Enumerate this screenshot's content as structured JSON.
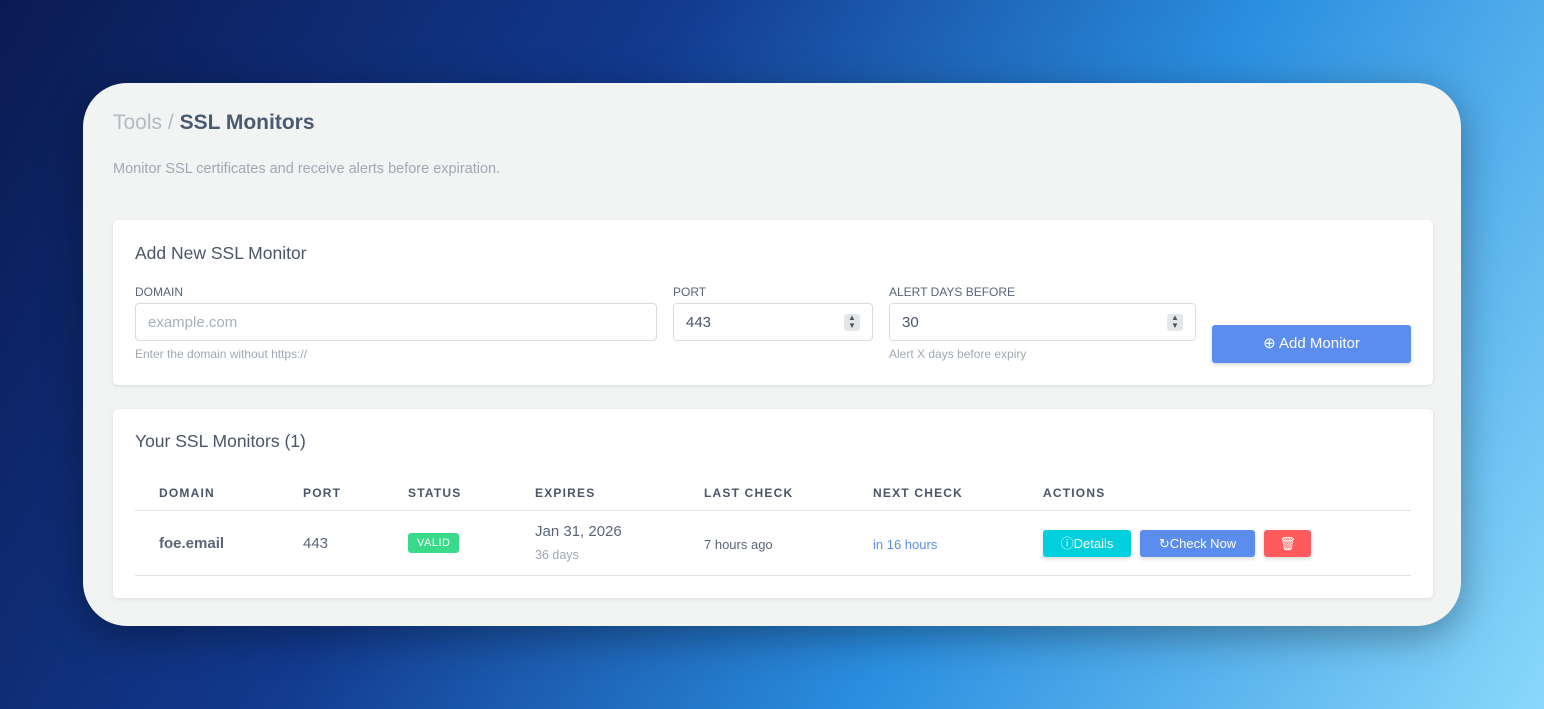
{
  "breadcrumb": {
    "parent": "Tools",
    "separator": "/",
    "current": "SSL Monitors"
  },
  "subtitle": "Monitor SSL certificates and receive alerts before expiration.",
  "add_form": {
    "title": "Add New SSL Monitor",
    "domain_label": "DOMAIN",
    "domain_placeholder": "example.com",
    "domain_help": "Enter the domain without https://",
    "port_label": "PORT",
    "port_value": "443",
    "alert_label": "ALERT DAYS BEFORE",
    "alert_value": "30",
    "alert_help": "Alert X days before expiry",
    "submit": "Add Monitor"
  },
  "monitors": {
    "title": "Your SSL Monitors (1)",
    "columns": [
      "DOMAIN",
      "PORT",
      "STATUS",
      "EXPIRES",
      "LAST CHECK",
      "NEXT CHECK",
      "ACTIONS"
    ],
    "rows": [
      {
        "domain": "foe.email",
        "port": "443",
        "status": "VALID",
        "expires": "Jan 31, 2026",
        "expires_in": "36 days",
        "last_check": "7 hours ago",
        "next_check": "in 16 hours",
        "details": "Details",
        "check_now": "Check Now"
      }
    ]
  },
  "colors": {
    "primary": "#5b8def",
    "info": "#00cfdd",
    "danger": "#ff5b5c",
    "success": "#39da8a"
  }
}
